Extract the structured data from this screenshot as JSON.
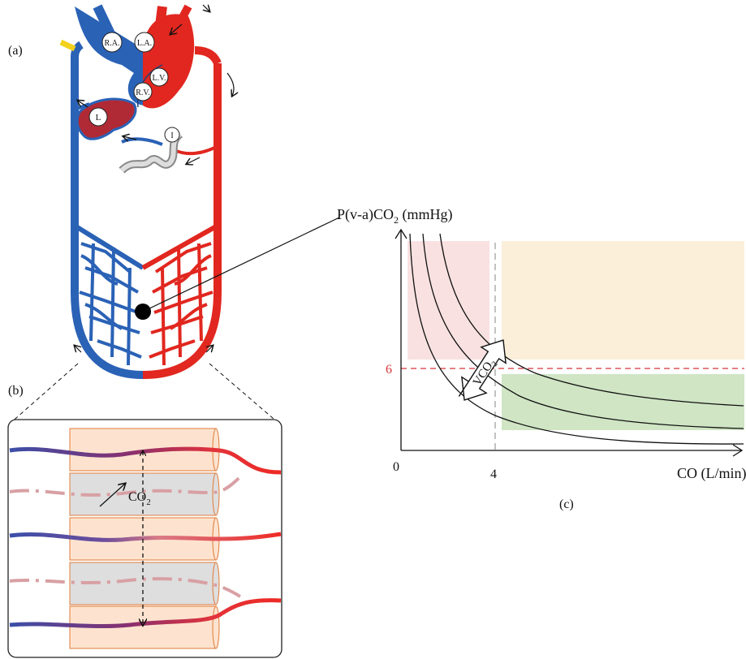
{
  "panel_labels": {
    "a": "(a)",
    "b": "(b)",
    "c": "(c)"
  },
  "heart": {
    "right_atrium": "R.A.",
    "left_atrium": "L.A.",
    "left_ventricle": "L.V.",
    "right_ventricle": "R.V."
  },
  "organs": {
    "liver": "L",
    "intestine": "I"
  },
  "capillary_detail": {
    "molecule_label": "CO",
    "molecule_subscript": "2"
  },
  "graph": {
    "y_axis_label_main": "P(v-a)CO",
    "y_axis_label_sub": "2",
    "y_axis_label_unit": " (mmHg)",
    "x_axis_label": "CO (L/min)",
    "origin_label": "0",
    "y_threshold_label": "6",
    "x_threshold_label": "4",
    "arrow_label_main": "VCO",
    "arrow_label_sub": "2"
  },
  "colors": {
    "venous_blue": "#2a62b6",
    "arterial_red": "#e1271f",
    "pink_zone": "#f9e1e1",
    "orange_zone": "#fbefd9",
    "green_zone": "#cfe5c4",
    "threshold_red": "#d6343a",
    "cell_orange": "#fde3cf",
    "cell_grey": "#dedede"
  }
}
